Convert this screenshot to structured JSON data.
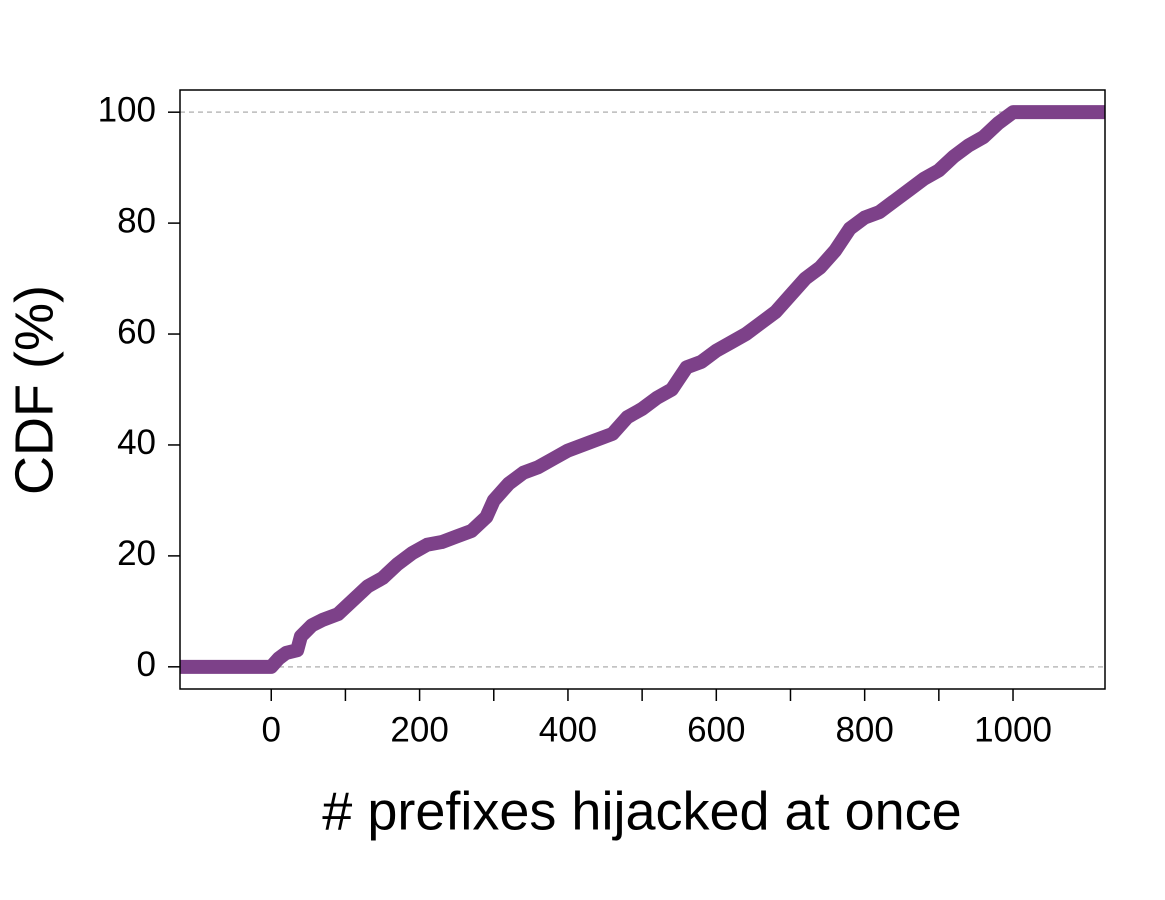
{
  "chart_data": {
    "type": "line",
    "xlabel": "# prefixes hijacked at once",
    "ylabel": "CDF (%)",
    "xlim": [
      -123,
      1124
    ],
    "ylim": [
      -4,
      104
    ],
    "xticks": [
      0,
      200,
      400,
      600,
      800,
      1000
    ],
    "xminorticks": [
      100,
      300,
      500,
      700,
      900
    ],
    "yticks": [
      0,
      20,
      40,
      60,
      80,
      100
    ],
    "grid_lines": [
      0,
      100
    ],
    "series": [
      {
        "color": "#7d4189",
        "x": [
          -123,
          0,
          10,
          20,
          35,
          40,
          55,
          70,
          90,
          110,
          130,
          150,
          170,
          190,
          210,
          230,
          250,
          270,
          290,
          300,
          320,
          340,
          360,
          380,
          400,
          430,
          460,
          480,
          500,
          520,
          540,
          560,
          580,
          600,
          620,
          640,
          660,
          680,
          700,
          720,
          740,
          760,
          780,
          800,
          820,
          840,
          860,
          880,
          900,
          920,
          940,
          960,
          980,
          1000,
          1124
        ],
        "values": [
          0,
          0,
          1.5,
          2.5,
          3,
          5.5,
          7.5,
          8.5,
          9.5,
          12,
          14.5,
          16,
          18.5,
          20.5,
          22,
          22.5,
          23.5,
          24.5,
          27,
          30,
          33,
          35,
          36,
          37.5,
          39,
          40.5,
          42,
          45,
          46.5,
          48.5,
          50,
          54,
          55,
          57,
          58.5,
          60,
          62,
          64,
          67,
          70,
          72,
          75,
          79,
          81,
          82,
          84,
          86,
          88,
          89.5,
          92,
          94,
          95.5,
          98,
          100,
          100
        ]
      }
    ]
  }
}
